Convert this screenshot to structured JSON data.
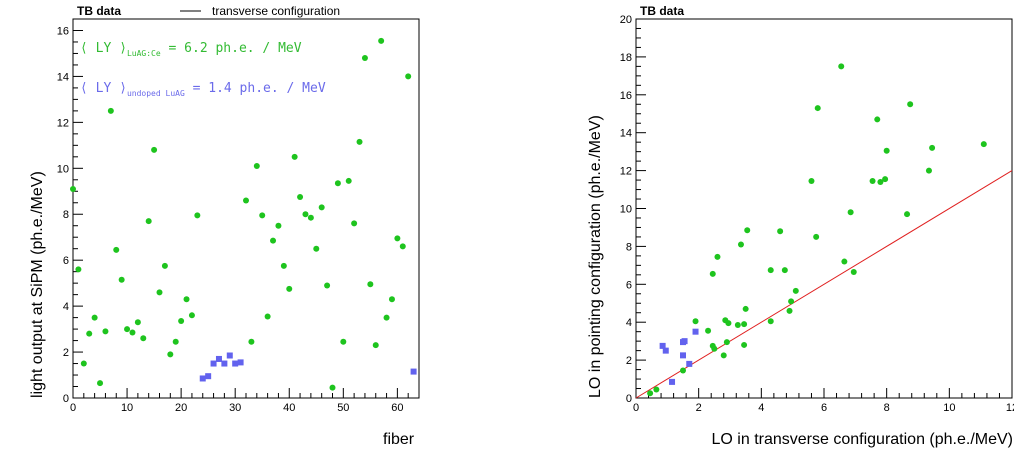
{
  "chart_data": [
    {
      "type": "scatter",
      "header": {
        "label": "TB data",
        "legend_line_label": "transverse configuration"
      },
      "xlabel": "fiber",
      "ylabel": "light output at SiPM (ph.e./MeV)",
      "xlim": [
        0,
        64
      ],
      "ylim": [
        0,
        16.5
      ],
      "x_ticks": [
        0,
        10,
        20,
        30,
        40,
        50,
        60
      ],
      "y_ticks": [
        0,
        2,
        4,
        6,
        8,
        10,
        12,
        14,
        16
      ],
      "annotations": [
        {
          "prefix": "⟨ LY ⟩",
          "sub": "LuAG:Ce",
          "suffix": " = 6.2 ph.e. / MeV",
          "color": "#33bb33"
        },
        {
          "prefix": "⟨ LY ⟩",
          "sub": "undoped LuAG",
          "suffix": " = 1.4 ph.e. / MeV",
          "color": "#6b6bea"
        }
      ],
      "series": [
        {
          "marker": "circle",
          "color": "#1ec41e",
          "points": [
            [
              0,
              9.1
            ],
            [
              1,
              5.6
            ],
            [
              2,
              1.5
            ],
            [
              3,
              2.8
            ],
            [
              4,
              3.5
            ],
            [
              5,
              0.65
            ],
            [
              6,
              2.9
            ],
            [
              7,
              12.5
            ],
            [
              8,
              6.45
            ],
            [
              9,
              5.15
            ],
            [
              10,
              3.0
            ],
            [
              11,
              2.85
            ],
            [
              12,
              3.3
            ],
            [
              13,
              2.6
            ],
            [
              14,
              7.7
            ],
            [
              15,
              10.8
            ],
            [
              16,
              4.6
            ],
            [
              17,
              5.75
            ],
            [
              18,
              1.9
            ],
            [
              19,
              2.45
            ],
            [
              20,
              3.35
            ],
            [
              21,
              4.3
            ],
            [
              22,
              3.6
            ],
            [
              23,
              7.95
            ],
            [
              32,
              8.6
            ],
            [
              33,
              2.45
            ],
            [
              34,
              10.1
            ],
            [
              35,
              7.95
            ],
            [
              36,
              3.55
            ],
            [
              37,
              6.85
            ],
            [
              38,
              7.5
            ],
            [
              39,
              5.75
            ],
            [
              40,
              4.75
            ],
            [
              41,
              10.5
            ],
            [
              42,
              8.75
            ],
            [
              43,
              8.0
            ],
            [
              44,
              7.85
            ],
            [
              45,
              6.5
            ],
            [
              46,
              8.3
            ],
            [
              47,
              4.9
            ],
            [
              48,
              0.45
            ],
            [
              49,
              9.35
            ],
            [
              50,
              2.45
            ],
            [
              51,
              9.45
            ],
            [
              52,
              7.6
            ],
            [
              53,
              11.15
            ],
            [
              54,
              14.8
            ],
            [
              55,
              4.95
            ],
            [
              56,
              2.3
            ],
            [
              57,
              15.55
            ],
            [
              58,
              3.5
            ],
            [
              59,
              4.3
            ],
            [
              60,
              6.95
            ],
            [
              61,
              6.6
            ],
            [
              62,
              14.0
            ]
          ]
        },
        {
          "marker": "square",
          "color": "#6262ee",
          "points": [
            [
              24,
              0.85
            ],
            [
              25,
              0.95
            ],
            [
              26,
              1.5
            ],
            [
              27,
              1.7
            ],
            [
              28,
              1.5
            ],
            [
              29,
              1.85
            ],
            [
              30,
              1.5
            ],
            [
              31,
              1.55
            ],
            [
              63,
              1.15
            ]
          ]
        }
      ]
    },
    {
      "type": "scatter",
      "header": {
        "label": "TB data"
      },
      "xlabel": "LO in transverse configuration (ph.e./MeV)",
      "ylabel": "LO in pointing configuration (ph.e./MeV)",
      "xlim": [
        0,
        12
      ],
      "ylim": [
        0,
        20
      ],
      "x_ticks": [
        0,
        2,
        4,
        6,
        8,
        10,
        12
      ],
      "y_ticks": [
        0,
        2,
        4,
        6,
        8,
        10,
        12,
        14,
        16,
        18,
        20
      ],
      "reference_line": {
        "points": [
          [
            0,
            0
          ],
          [
            12,
            12
          ]
        ],
        "color": "#e02020"
      },
      "series": [
        {
          "marker": "circle",
          "color": "#1ec41e",
          "points": [
            [
              0.45,
              0.25
            ],
            [
              0.65,
              0.45
            ],
            [
              1.5,
              1.45
            ],
            [
              1.9,
              4.05
            ],
            [
              2.3,
              3.55
            ],
            [
              2.45,
              2.75
            ],
            [
              2.45,
              6.55
            ],
            [
              2.5,
              2.6
            ],
            [
              2.6,
              7.45
            ],
            [
              2.8,
              2.25
            ],
            [
              2.85,
              4.1
            ],
            [
              2.9,
              2.95
            ],
            [
              2.95,
              3.95
            ],
            [
              3.25,
              3.85
            ],
            [
              3.35,
              8.1
            ],
            [
              3.45,
              3.9
            ],
            [
              3.45,
              2.8
            ],
            [
              3.5,
              4.7
            ],
            [
              3.55,
              8.85
            ],
            [
              4.3,
              4.05
            ],
            [
              4.3,
              6.75
            ],
            [
              4.6,
              8.8
            ],
            [
              4.75,
              6.75
            ],
            [
              4.9,
              4.6
            ],
            [
              4.95,
              5.1
            ],
            [
              5.1,
              5.65
            ],
            [
              5.6,
              11.45
            ],
            [
              5.75,
              8.5
            ],
            [
              5.8,
              15.3
            ],
            [
              6.55,
              17.5
            ],
            [
              6.65,
              7.2
            ],
            [
              6.85,
              9.8
            ],
            [
              6.95,
              6.65
            ],
            [
              7.55,
              11.45
            ],
            [
              7.7,
              14.7
            ],
            [
              7.8,
              11.4
            ],
            [
              7.95,
              11.55
            ],
            [
              8.0,
              13.05
            ],
            [
              8.65,
              9.7
            ],
            [
              8.75,
              15.5
            ],
            [
              9.35,
              12.0
            ],
            [
              9.45,
              13.2
            ],
            [
              11.1,
              13.4
            ]
          ]
        },
        {
          "marker": "square",
          "color": "#6262ee",
          "points": [
            [
              0.85,
              2.75
            ],
            [
              0.95,
              2.5
            ],
            [
              1.15,
              0.85
            ],
            [
              1.5,
              2.95
            ],
            [
              1.5,
              2.25
            ],
            [
              1.55,
              3.0
            ],
            [
              1.7,
              1.8
            ],
            [
              1.9,
              3.5
            ]
          ]
        }
      ]
    }
  ]
}
